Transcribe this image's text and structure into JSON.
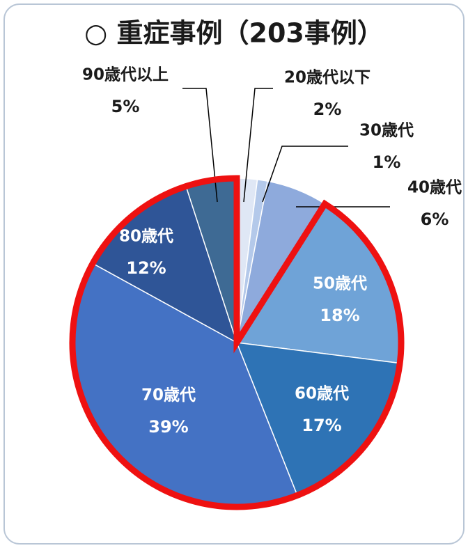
{
  "chart_data": {
    "type": "pie",
    "title": "○ 重症事例（203事例）",
    "categories": [
      "20歳代以下",
      "30歳代",
      "40歳代",
      "50歳代",
      "60歳代",
      "70歳代",
      "80歳代",
      "90歳代以上"
    ],
    "values": [
      2,
      1,
      6,
      18,
      17,
      39,
      12,
      5
    ],
    "value_labels": [
      "2%",
      "1%",
      "6%",
      "18%",
      "17%",
      "39%",
      "12%",
      "5%"
    ],
    "colors": [
      "#dfe7f5",
      "#b4c9ea",
      "#8eaadc",
      "#6fa3d7",
      "#2e73b5",
      "#4472c4",
      "#2f5597",
      "#3e6a94"
    ],
    "highlight": {
      "from": 3,
      "to": 7,
      "color": "#ee1111"
    }
  }
}
